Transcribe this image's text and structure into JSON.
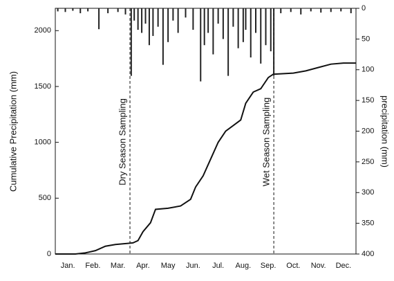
{
  "chart_data": {
    "type": "line",
    "y_label": "Cumulative Precipitation (mm)",
    "y2_label": "precipitation (mm)",
    "categories": [
      "Jan.",
      "Feb.",
      "Mar.",
      "Apr.",
      "May",
      "Jun.",
      "Jul.",
      "Aug.",
      "Sep.",
      "Oct.",
      "Nov.",
      "Dec."
    ],
    "xlim": [
      0,
      12
    ],
    "ylim": [
      0,
      2200
    ],
    "yticks": [
      0,
      500,
      1000,
      1500,
      2000
    ],
    "y2lim": [
      0,
      400
    ],
    "y2ticks": [
      0,
      50,
      100,
      150,
      200,
      250,
      300,
      350,
      400
    ],
    "y2_inverted": true,
    "series": [
      {
        "name": "Cumulative Precipitation",
        "color": "#111111",
        "axis": "y",
        "x": [
          0,
          0.8,
          1.2,
          1.6,
          2.0,
          2.4,
          2.9,
          3.1,
          3.3,
          3.5,
          3.8,
          4.0,
          4.5,
          5.0,
          5.4,
          5.6,
          5.9,
          6.2,
          6.5,
          6.8,
          7.1,
          7.4,
          7.6,
          7.9,
          8.2,
          8.5,
          8.7,
          9.5,
          10.0,
          10.5,
          11.0,
          11.5,
          12.0
        ],
        "values": [
          0,
          0,
          10,
          30,
          70,
          85,
          95,
          100,
          120,
          200,
          280,
          400,
          410,
          430,
          490,
          600,
          700,
          850,
          1000,
          1100,
          1150,
          1200,
          1350,
          1450,
          1480,
          1580,
          1610,
          1620,
          1640,
          1670,
          1700,
          1710,
          1710
        ]
      },
      {
        "name": "precipitation",
        "color": "#222222",
        "axis": "y2",
        "kind": "bar",
        "x": [
          0.1,
          0.4,
          0.7,
          1.0,
          1.3,
          1.74,
          2.1,
          2.5,
          2.8,
          3.03,
          3.15,
          3.3,
          3.45,
          3.6,
          3.75,
          3.9,
          4.1,
          4.3,
          4.5,
          4.7,
          4.9,
          5.2,
          5.5,
          5.8,
          5.95,
          6.1,
          6.3,
          6.5,
          6.7,
          6.9,
          7.1,
          7.3,
          7.5,
          7.6,
          7.8,
          8.0,
          8.2,
          8.4,
          8.6,
          8.72,
          9.0,
          9.4,
          9.8,
          10.2,
          10.6,
          11.0,
          11.4,
          11.8
        ],
        "values": [
          5,
          6,
          4,
          8,
          5,
          34,
          8,
          6,
          10,
          110,
          20,
          35,
          40,
          25,
          60,
          45,
          30,
          92,
          55,
          20,
          40,
          15,
          35,
          119,
          60,
          40,
          75,
          25,
          50,
          110,
          30,
          65,
          55,
          35,
          80,
          40,
          90,
          60,
          70,
          110,
          8,
          6,
          10,
          5,
          7,
          6,
          5,
          8
        ]
      }
    ],
    "annotations": [
      {
        "text": "Dry Season Sampling",
        "x": 2.98
      },
      {
        "text": "Wet Season Sampling",
        "x": 8.72
      }
    ]
  }
}
